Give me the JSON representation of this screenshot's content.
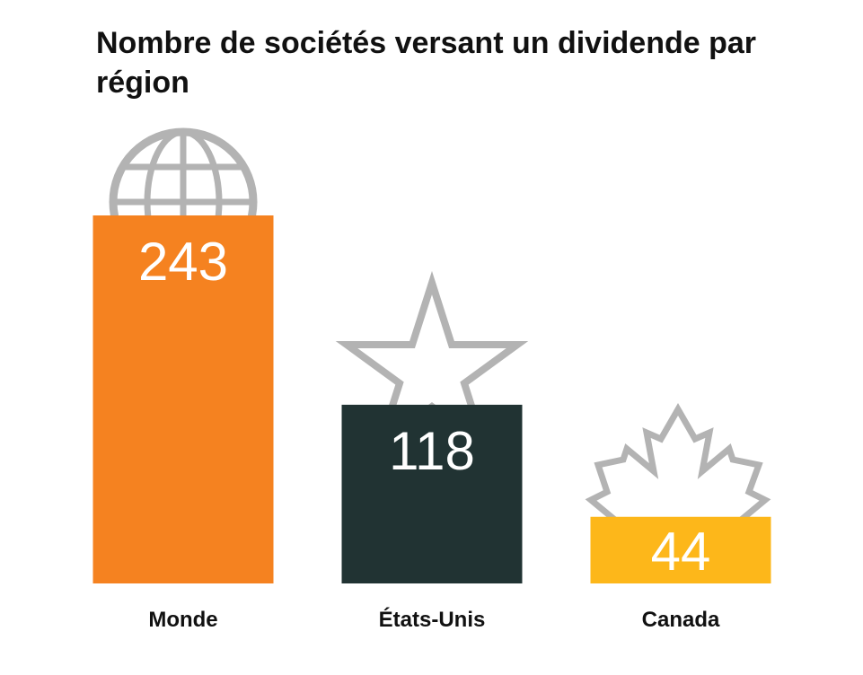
{
  "chart_data": {
    "type": "bar",
    "title": "Nombre de sociétés versant un dividende par région",
    "xlabel": "",
    "ylabel": "",
    "categories": [
      "Monde",
      "États-Unis",
      "Canada"
    ],
    "values": [
      243,
      118,
      44
    ],
    "value_labels": [
      "243",
      "118",
      "44"
    ],
    "bar_colors": [
      "#F58220",
      "#213333",
      "#FDB71A"
    ],
    "icons": [
      "globe-icon",
      "star-icon",
      "maple-leaf-icon"
    ],
    "icon_color": "#B3B3B3",
    "ylim": [
      0,
      243
    ],
    "grid": false,
    "legend": "none"
  }
}
